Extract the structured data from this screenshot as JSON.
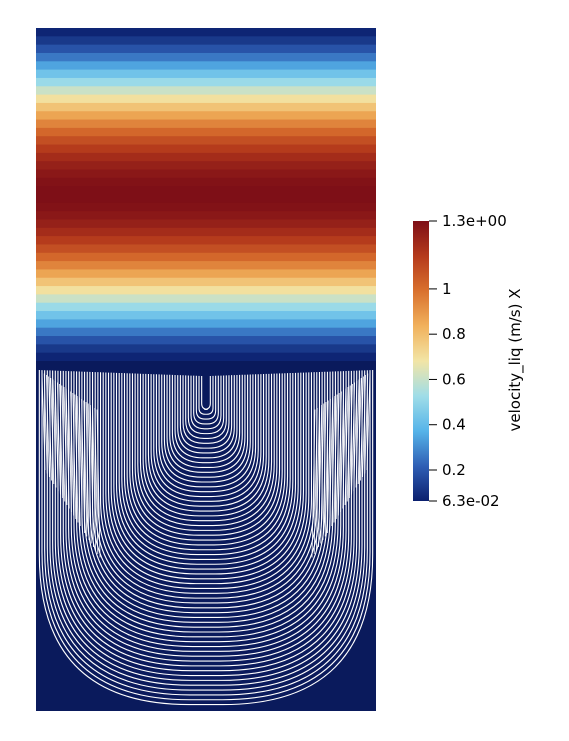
{
  "colorbar": {
    "title": "velocity_liq (m/s) X",
    "min_label": "6.3e-02",
    "max_label": "1.3e+00",
    "min_value": 0.063,
    "max_value": 1.3,
    "ticks": [
      {
        "value": 1.3,
        "label": "1.3e+00"
      },
      {
        "value": 1.0,
        "label": "1"
      },
      {
        "value": 0.8,
        "label": "0.8"
      },
      {
        "value": 0.6,
        "label": "0.6"
      },
      {
        "value": 0.4,
        "label": "0.4"
      },
      {
        "value": 0.2,
        "label": "0.2"
      },
      {
        "value": 0.063,
        "label": "6.3e-02"
      }
    ],
    "colormap": [
      "#0b1f6e",
      "#2f5fb5",
      "#56b4e9",
      "#9fdde8",
      "#f2e5a6",
      "#f1b15c",
      "#d9712e",
      "#b53a1c",
      "#7e0f17"
    ]
  },
  "plot": {
    "upper_field": "velocity_liq X contour bands",
    "lower_field": "streamlines",
    "background_color": "#0a1a5c",
    "streamline_color": "#ffffff"
  }
}
